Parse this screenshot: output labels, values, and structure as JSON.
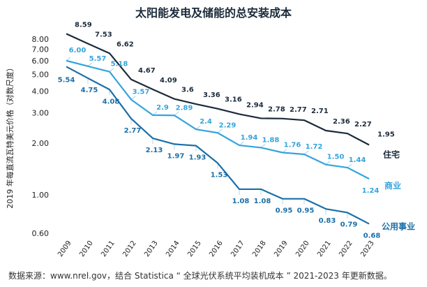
{
  "title": "太阳能发电及储能的总安装成本",
  "source": "数据来源：www.nrel.gov，结合 Statistica “ 全球光伏系统平均装机成本 ” 2021-2023 年更新数据。",
  "chart_data": {
    "type": "line",
    "title": "太阳能发电及储能的总安装成本",
    "xlabel": "",
    "ylabel": "2019 年每直流瓦特美元价格（对数尺度）",
    "y_scale": "log",
    "ylim": [
      0.6,
      8.0
    ],
    "y_ticks": [
      "8.00",
      "7.00",
      "6.00",
      "5.00",
      "4.00",
      "3.00",
      "2.00",
      "1.00",
      "0.60"
    ],
    "y_tick_values": [
      8,
      7,
      6,
      5,
      4,
      3,
      2,
      1,
      0.6
    ],
    "grid": false,
    "legend": "series names at right end of lines",
    "categories": [
      "2009",
      "2010",
      "2011",
      "2012",
      "2013",
      "2014",
      "2015",
      "2016",
      "2017",
      "2018",
      "2019",
      "2020",
      "2021",
      "2022",
      "2023"
    ],
    "series": [
      {
        "name": "住宅",
        "color": "#1b2a3a",
        "values": [
          8.59,
          7.53,
          6.62,
          4.67,
          4.09,
          3.6,
          3.36,
          3.16,
          2.94,
          2.78,
          2.77,
          2.71,
          2.36,
          2.27,
          1.95
        ],
        "labels": [
          "8.59",
          "7.53",
          "6.62",
          "4.67",
          "4.09",
          "3.6",
          "3.36",
          "3.16",
          "2.94",
          "2.78",
          "2.77",
          "2.71",
          "2.36",
          "2.27",
          "1.95"
        ]
      },
      {
        "name": "商业",
        "color": "#35a4dc",
        "values": [
          6.0,
          5.57,
          5.18,
          3.57,
          2.9,
          2.89,
          2.4,
          2.29,
          1.94,
          1.88,
          1.76,
          1.72,
          1.5,
          1.44,
          1.24
        ],
        "labels": [
          "6.00",
          "5.57",
          "5.18",
          "3.57",
          "2.9",
          "2.89",
          "2.4",
          "2.29",
          "1.94",
          "1.88",
          "1.76",
          "1.72",
          "1.50",
          "1.44",
          "1.24"
        ]
      },
      {
        "name": "公用事业",
        "color": "#1a6fa8",
        "values": [
          5.54,
          4.75,
          4.08,
          2.77,
          2.13,
          1.97,
          1.93,
          1.53,
          1.08,
          1.08,
          0.95,
          0.95,
          0.83,
          0.79,
          0.68
        ],
        "labels": [
          "5.54",
          "4.75",
          "4.08",
          "2.77",
          "2.13",
          "1.97",
          "1.93",
          "1.53",
          "1.08",
          "1.08",
          "0.95",
          "0.95",
          "0.83",
          "0.79",
          "0.68"
        ]
      }
    ]
  }
}
